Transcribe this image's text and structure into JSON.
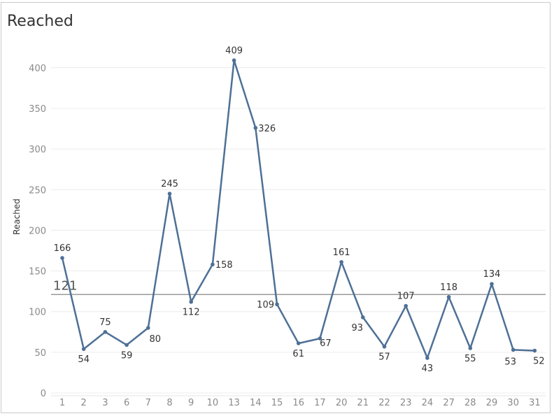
{
  "chart_data": {
    "type": "line",
    "title": "Reached",
    "ylabel": "Reached",
    "xlabel": "",
    "categories": [
      "1",
      "2",
      "3",
      "6",
      "7",
      "8",
      "9",
      "10",
      "13",
      "14",
      "15",
      "16",
      "17",
      "20",
      "21",
      "22",
      "23",
      "24",
      "27",
      "28",
      "29",
      "30",
      "31"
    ],
    "series": [
      {
        "values": [
          166,
          54,
          75,
          59,
          80,
          245,
          112,
          158,
          409,
          326,
          109,
          61,
          67,
          161,
          93,
          57,
          107,
          43,
          118,
          55,
          134,
          53,
          52
        ]
      }
    ],
    "yticks": [
      0,
      50,
      100,
      150,
      200,
      250,
      300,
      350,
      400
    ],
    "ylim": [
      0,
      420
    ],
    "reference_line": {
      "value": 121,
      "label": "121"
    },
    "grid": "horizontal",
    "line_color": "#4e7096",
    "reference_color": "#9a9a9a"
  }
}
